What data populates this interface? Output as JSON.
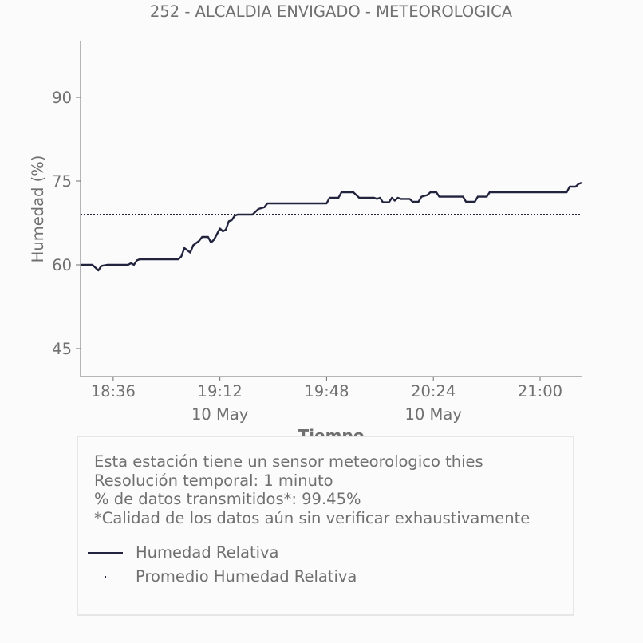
{
  "chart_data": {
    "type": "line",
    "title": "252 - ALCALDIA ENVIGADO - METEOROLOGICA",
    "xlabel": "Tiempo",
    "ylabel": "Humedad (%)",
    "ylim": [
      40,
      100
    ],
    "xlim": [
      "18:25",
      "21:14"
    ],
    "yticks": [
      45,
      60,
      75,
      90
    ],
    "xticks": [
      {
        "time": "18:36",
        "date": ""
      },
      {
        "time": "19:12",
        "date": "10 May"
      },
      {
        "time": "19:48",
        "date": ""
      },
      {
        "time": "20:24",
        "date": "10 May"
      },
      {
        "time": "21:00",
        "date": ""
      }
    ],
    "grid": false,
    "series": [
      {
        "name": "Humedad Relativa",
        "color": "#22243e",
        "style": "solid",
        "points": [
          [
            "18:25",
            60
          ],
          [
            "18:29",
            60
          ],
          [
            "18:30",
            59.5
          ],
          [
            "18:31",
            59
          ],
          [
            "18:32",
            59.8
          ],
          [
            "18:34",
            60
          ],
          [
            "18:41",
            60
          ],
          [
            "18:42",
            60.3
          ],
          [
            "18:43",
            60
          ],
          [
            "18:44",
            60.8
          ],
          [
            "18:45",
            61
          ],
          [
            "18:58",
            61
          ],
          [
            "18:59",
            61.5
          ],
          [
            "19:00",
            63
          ],
          [
            "19:02",
            62.2
          ],
          [
            "19:03",
            63.5
          ],
          [
            "19:05",
            64.3
          ],
          [
            "19:06",
            65
          ],
          [
            "19:08",
            65
          ],
          [
            "19:09",
            64
          ],
          [
            "19:10",
            64.5
          ],
          [
            "19:12",
            66.5
          ],
          [
            "19:13",
            66
          ],
          [
            "19:14",
            66.3
          ],
          [
            "19:15",
            67.8
          ],
          [
            "19:16",
            68
          ],
          [
            "19:17",
            68.8
          ],
          [
            "19:18",
            69
          ],
          [
            "19:23",
            69
          ],
          [
            "19:24",
            69.5
          ],
          [
            "19:25",
            70
          ],
          [
            "19:27",
            70.3
          ],
          [
            "19:28",
            71
          ],
          [
            "19:48",
            71
          ],
          [
            "19:49",
            72
          ],
          [
            "19:52",
            72
          ],
          [
            "19:53",
            73
          ],
          [
            "19:57",
            73
          ],
          [
            "19:58",
            72.5
          ],
          [
            "19:59",
            72
          ],
          [
            "20:04",
            72
          ],
          [
            "20:05",
            71.8
          ],
          [
            "20:06",
            72
          ],
          [
            "20:07",
            71.2
          ],
          [
            "20:09",
            71.2
          ],
          [
            "20:10",
            72
          ],
          [
            "20:11",
            71.5
          ],
          [
            "20:12",
            72
          ],
          [
            "20:13",
            71.8
          ],
          [
            "20:16",
            71.8
          ],
          [
            "20:17",
            71.3
          ],
          [
            "20:19",
            71.3
          ],
          [
            "20:20",
            72.2
          ],
          [
            "20:22",
            72.5
          ],
          [
            "20:23",
            73
          ],
          [
            "20:25",
            73
          ],
          [
            "20:26",
            72.2
          ],
          [
            "20:34",
            72.2
          ],
          [
            "20:35",
            71.3
          ],
          [
            "20:38",
            71.3
          ],
          [
            "20:39",
            72.2
          ],
          [
            "20:42",
            72.2
          ],
          [
            "20:43",
            73
          ],
          [
            "21:00",
            73
          ],
          [
            "21:09",
            73
          ],
          [
            "21:10",
            74
          ],
          [
            "21:12",
            74
          ],
          [
            "21:13",
            74.5
          ],
          [
            "21:14",
            74.7
          ]
        ]
      },
      {
        "name": "Promedio Humedad Relativa",
        "color": "#22243e",
        "style": "dotted",
        "value": 69
      }
    ]
  },
  "info": {
    "lines": [
      "Esta estación tiene un sensor meteorologico thies",
      "Resolución temporal: 1 minuto",
      "% de datos transmitidos*: 99.45%",
      "*Calidad de los datos aún sin verificar exhaustivamente"
    ]
  },
  "legend": [
    {
      "label": "Humedad Relativa",
      "style": "line"
    },
    {
      "label": "Promedio Humedad Relativa",
      "style": "dot"
    }
  ]
}
